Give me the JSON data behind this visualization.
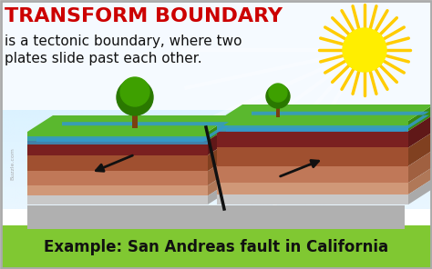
{
  "title": "TRANSFORM BOUNDARY",
  "subtitle": "is a tectonic boundary, where two\nplates slide past each other.",
  "example": "Example: San Andreas fault in California",
  "bg_color": "#ffffff",
  "bottom_bar_color": "#80c832",
  "title_color": "#cc0000",
  "example_color": "#111111",
  "border_color": "#aaaaaa",
  "sun_color": "#ffee00",
  "sun_ray_color": "#ffcc00",
  "sky_top": "#cceeff",
  "sky_bottom": "#eaf7fc",
  "grass_color": "#5ab82e",
  "grass_dark": "#3a8a10",
  "water_color": "#3399cc",
  "water_light": "#66bbdd",
  "layer1_color": "#7a2020",
  "layer1_side": "#601818",
  "layer2_color": "#a05030",
  "layer2_side": "#804020",
  "layer3_color": "#c07858",
  "layer3_side": "#a06040",
  "layer4_color": "#d09878",
  "layer4_side": "#b07858",
  "bottom_color": "#c8c8c8",
  "bottom_side": "#aaaaaa",
  "fault_color": "#111111",
  "arrow_color": "#111111",
  "sunray_light": "#ffffff",
  "watermark": "Buzzle.com",
  "tree_trunk": "#7a4010",
  "tree_dark": "#2a7800",
  "tree_light": "#3ea000"
}
